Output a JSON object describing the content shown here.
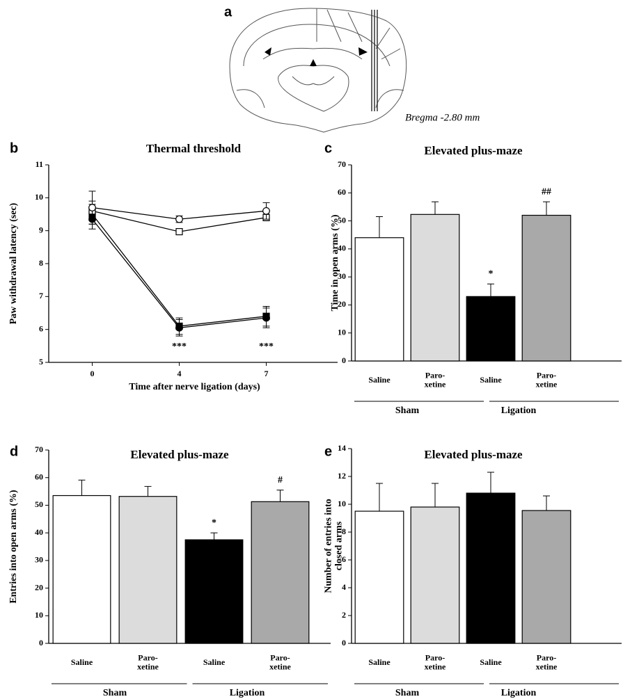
{
  "panel_a": {
    "panel": "a",
    "caption": "Bregma -2.80 mm"
  },
  "chart_data": [
    {
      "panel": "b",
      "type": "line",
      "title": "Thermal threshold",
      "x_label": "Time after nerve ligation (days)",
      "y_label": "Paw withdrawal latency (sec)",
      "categories": [
        "0",
        "4",
        "7"
      ],
      "ylim": [
        5,
        11
      ],
      "yticks": [
        5,
        6,
        7,
        8,
        9,
        10,
        11
      ],
      "series": [
        {
          "marker": "circle",
          "fill": "#ffffff",
          "values": [
            9.7,
            9.35,
            9.6
          ],
          "errors": [
            0.5,
            0.1,
            0.25
          ]
        },
        {
          "marker": "square",
          "fill": "#ffffff",
          "values": [
            9.6,
            8.97,
            9.4
          ],
          "errors": [
            0.3,
            0.08,
            0.1
          ]
        },
        {
          "marker": "circle",
          "fill": "#000000",
          "values": [
            9.35,
            6.05,
            6.35
          ],
          "errors": [
            0.3,
            0.25,
            0.3
          ]
        },
        {
          "marker": "square",
          "fill": "#000000",
          "values": [
            9.5,
            6.1,
            6.4
          ],
          "errors": [
            0.3,
            0.25,
            0.3
          ]
        }
      ],
      "annotations": [
        null,
        "***",
        "***"
      ]
    },
    {
      "panel": "c",
      "type": "bar",
      "title": "Elevated plus-maze",
      "y_label": "Time in open arms (%)",
      "categories": [
        "Saline",
        "Paro-\nxetine",
        "Saline",
        "Paro-\nxetine"
      ],
      "groups": [
        "Sham",
        "Ligation"
      ],
      "ylim": [
        0,
        70
      ],
      "yticks": [
        0,
        10,
        20,
        30,
        40,
        50,
        60,
        70
      ],
      "values": [
        44,
        52.3,
        23,
        52
      ],
      "errors": [
        7.5,
        4.5,
        4.5,
        4.8
      ],
      "colors": [
        "#ffffff",
        "#dcdcdc",
        "#000000",
        "#a9a9a9"
      ],
      "annotations": [
        null,
        null,
        "*",
        "##"
      ]
    },
    {
      "panel": "d",
      "type": "bar",
      "title": "Elevated plus-maze",
      "y_label": "Entries into open arms (%)",
      "categories": [
        "Saline",
        "Paro-\nxetine",
        "Saline",
        "Paro-\nxetine"
      ],
      "groups": [
        "Sham",
        "Ligation"
      ],
      "ylim": [
        0,
        70
      ],
      "yticks": [
        0,
        10,
        20,
        30,
        40,
        50,
        60,
        70
      ],
      "values": [
        53.5,
        53.2,
        37.5,
        51.3
      ],
      "errors": [
        5.6,
        3.6,
        2.5,
        4.2
      ],
      "colors": [
        "#ffffff",
        "#dcdcdc",
        "#000000",
        "#a9a9a9"
      ],
      "annotations": [
        null,
        null,
        "*",
        "#"
      ]
    },
    {
      "panel": "e",
      "type": "bar",
      "title": "Elevated plus-maze",
      "y_label": "Number of entries into\nclosed arms",
      "categories": [
        "Saline",
        "Paro-\nxetine",
        "Saline",
        "Paro-\nxetine"
      ],
      "groups": [
        "Sham",
        "Ligation"
      ],
      "ylim": [
        0,
        14
      ],
      "yticks": [
        0,
        2,
        4,
        6,
        8,
        10,
        12,
        14
      ],
      "values": [
        9.5,
        9.8,
        10.8,
        9.55
      ],
      "errors": [
        2,
        1.7,
        1.5,
        1.05
      ],
      "colors": [
        "#ffffff",
        "#dcdcdc",
        "#000000",
        "#a9a9a9"
      ],
      "annotations": [
        null,
        null,
        null,
        null
      ]
    }
  ]
}
